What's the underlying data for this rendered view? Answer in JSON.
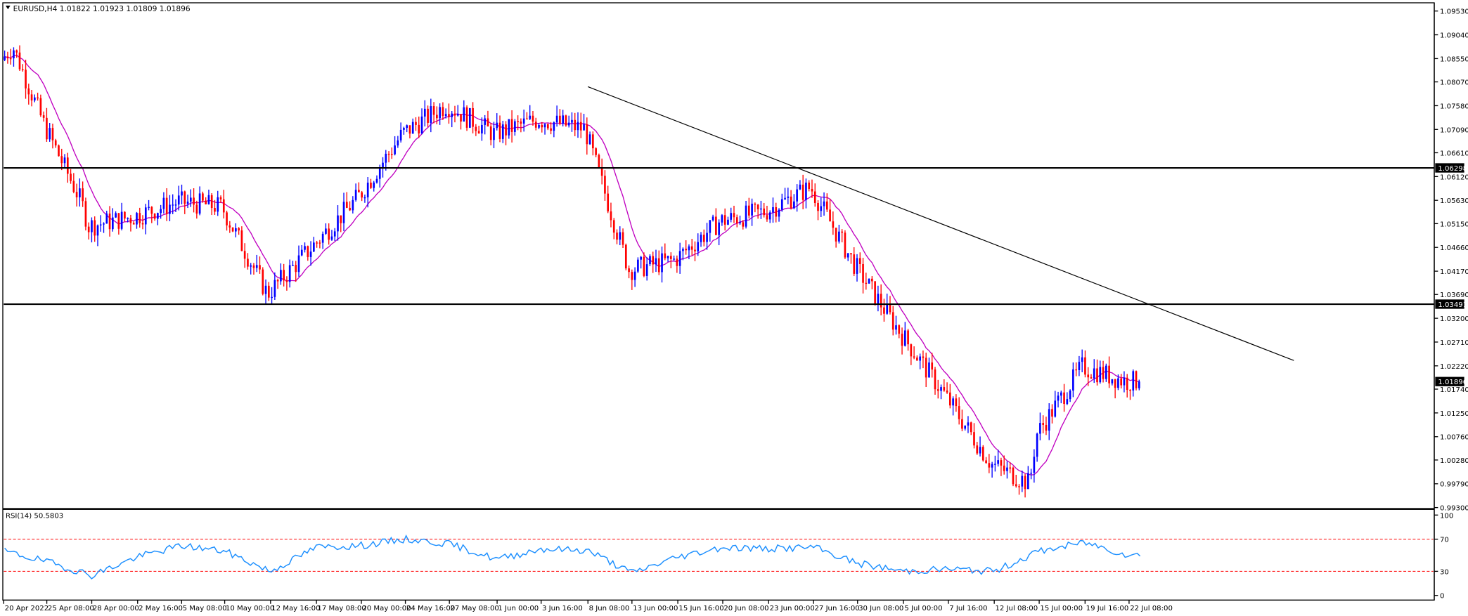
{
  "window": {
    "symbol_header": "EURUSD,H4  1.01822 1.01923 1.01809 1.01896",
    "menu_icon": "triangle-down-icon"
  },
  "colors": {
    "bull_candle": "#0000ff",
    "bear_candle": "#ff0000",
    "moving_average": "#c000c0",
    "rsi_line": "#1e90ff",
    "rsi_levels": "#ff0000",
    "horizontal_lines": "#000000",
    "trendline": "#000000",
    "current_price_label_bg": "#000000",
    "current_price_label_text": "#ffffff"
  },
  "price_axis": {
    "ticks": [
      "1.09530",
      "1.09040",
      "1.08550",
      "1.08070",
      "1.07580",
      "1.07090",
      "1.06610",
      "1.06120",
      "1.05630",
      "1.05150",
      "1.04660",
      "1.04170",
      "1.03690",
      "1.03200",
      "1.02710",
      "1.02220",
      "1.01740",
      "1.01250",
      "1.00760",
      "1.00280",
      "0.99790",
      "0.99300"
    ],
    "range": [
      0.993,
      1.0968
    ]
  },
  "time_axis": {
    "ticks": [
      "20 Apr 2022",
      "25 Apr 08:00",
      "28 Apr 00:00",
      "2 May 16:00",
      "5 May 08:00",
      "10 May 00:00",
      "12 May 16:00",
      "17 May 08:00",
      "20 May 00:00",
      "24 May 16:00",
      "27 May 08:00",
      "1 Jun 00:00",
      "3 Jun 16:00",
      "8 Jun 08:00",
      "13 Jun 00:00",
      "15 Jun 16:00",
      "20 Jun 08:00",
      "23 Jun 00:00",
      "27 Jun 16:00",
      "30 Jun 08:00",
      "5 Jul 00:00",
      "7 Jul 16:00",
      "12 Jul 08:00",
      "15 Jul 00:00",
      "19 Jul 16:00",
      "22 Jul 08:00"
    ]
  },
  "levels": {
    "resistance": "1.06298",
    "support": "1.03491",
    "current": "1.01896"
  },
  "rsi": {
    "label": "RSI(14) 50.5803",
    "axis_ticks": [
      "100",
      "70",
      "30",
      "0"
    ],
    "levels": [
      70,
      30
    ]
  },
  "chart_data": {
    "type": "candlestick",
    "symbol": "EURUSD",
    "timeframe": "H4",
    "ohlc_last": {
      "open": 1.01822,
      "high": 1.01923,
      "low": 1.01809,
      "close": 1.01896
    },
    "ylim": [
      0.993,
      1.0968
    ],
    "path_keypoints": [
      {
        "x": "20 Apr 2022",
        "price": 1.085
      },
      {
        "x": "21 Apr",
        "price": 1.088
      },
      {
        "x": "25 Apr 08:00",
        "price": 1.072
      },
      {
        "x": "27 Apr",
        "price": 1.056
      },
      {
        "x": "28 Apr 00:00",
        "price": 1.051
      },
      {
        "x": "2 May 16:00",
        "price": 1.053
      },
      {
        "x": "5 May 08:00",
        "price": 1.056
      },
      {
        "x": "10 May 00:00",
        "price": 1.055
      },
      {
        "x": "12 May 16:00",
        "price": 1.037
      },
      {
        "x": "17 May 08:00",
        "price": 1.047
      },
      {
        "x": "20 May 00:00",
        "price": 1.057
      },
      {
        "x": "24 May 16:00",
        "price": 1.07
      },
      {
        "x": "27 May 08:00",
        "price": 1.076
      },
      {
        "x": "1 Jun 00:00",
        "price": 1.07
      },
      {
        "x": "3 Jun 16:00",
        "price": 1.073
      },
      {
        "x": "8 Jun 08:00",
        "price": 1.071
      },
      {
        "x": "13 Jun 00:00",
        "price": 1.042
      },
      {
        "x": "15 Jun 16:00",
        "price": 1.044
      },
      {
        "x": "20 Jun 08:00",
        "price": 1.052
      },
      {
        "x": "23 Jun 00:00",
        "price": 1.054
      },
      {
        "x": "27 Jun 16:00",
        "price": 1.059
      },
      {
        "x": "30 Jun 08:00",
        "price": 1.043
      },
      {
        "x": "5 Jul 00:00",
        "price": 1.029
      },
      {
        "x": "7 Jul 16:00",
        "price": 1.016
      },
      {
        "x": "12 Jul 08:00",
        "price": 1.002
      },
      {
        "x": "14 Jul",
        "price": 0.998
      },
      {
        "x": "15 Jul 00:00",
        "price": 1.008
      },
      {
        "x": "19 Jul 16:00",
        "price": 1.022
      },
      {
        "x": "22 Jul 08:00",
        "price": 1.019
      }
    ],
    "horizontal_levels": [
      1.06298,
      1.03491
    ],
    "trendline": [
      {
        "x": "8 Jun 08:00",
        "price": 1.0797
      },
      {
        "x": "end",
        "price": 1.0233
      }
    ],
    "rsi": {
      "period": 14,
      "last": 50.5803,
      "levels": [
        70,
        30
      ],
      "ylim": [
        0,
        100
      ],
      "keypoints": [
        {
          "x": "20 Apr 2022",
          "value": 55
        },
        {
          "x": "25 Apr 08:00",
          "value": 42
        },
        {
          "x": "28 Apr 00:00",
          "value": 25
        },
        {
          "x": "2 May 16:00",
          "value": 48
        },
        {
          "x": "5 May 08:00",
          "value": 62
        },
        {
          "x": "10 May 00:00",
          "value": 55
        },
        {
          "x": "12 May 16:00",
          "value": 30
        },
        {
          "x": "17 May 08:00",
          "value": 60
        },
        {
          "x": "20 May 00:00",
          "value": 62
        },
        {
          "x": "24 May 16:00",
          "value": 70
        },
        {
          "x": "27 May 08:00",
          "value": 64
        },
        {
          "x": "1 Jun 00:00",
          "value": 45
        },
        {
          "x": "3 Jun 16:00",
          "value": 58
        },
        {
          "x": "8 Jun 08:00",
          "value": 56
        },
        {
          "x": "13 Jun 00:00",
          "value": 28
        },
        {
          "x": "15 Jun 16:00",
          "value": 48
        },
        {
          "x": "20 Jun 08:00",
          "value": 60
        },
        {
          "x": "23 Jun 00:00",
          "value": 58
        },
        {
          "x": "27 Jun 16:00",
          "value": 60
        },
        {
          "x": "30 Jun 08:00",
          "value": 40
        },
        {
          "x": "5 Jul 00:00",
          "value": 30
        },
        {
          "x": "7 Jul 16:00",
          "value": 33
        },
        {
          "x": "12 Jul 08:00",
          "value": 30
        },
        {
          "x": "15 Jul 00:00",
          "value": 55
        },
        {
          "x": "19 Jul 16:00",
          "value": 66
        },
        {
          "x": "22 Jul 08:00",
          "value": 50
        }
      ]
    }
  }
}
